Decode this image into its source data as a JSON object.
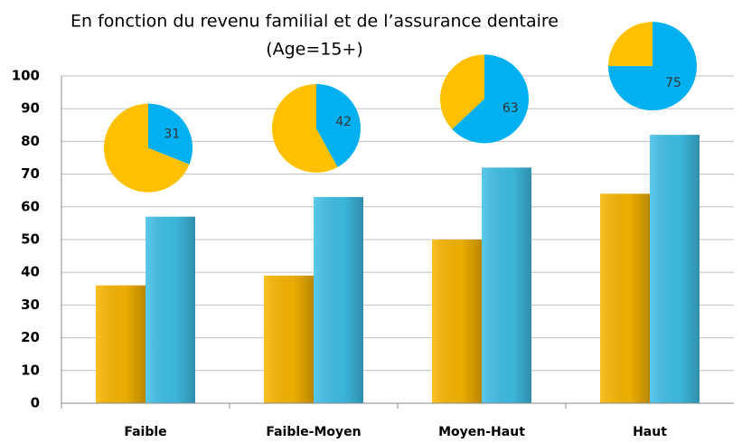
{
  "chart_data": [
    {
      "type": "bar",
      "title": "En fonction du revenu familial et de l’assurance dentaire",
      "subtitle": "(Age=15+)",
      "categories": [
        "Faible",
        "Faible-Moyen",
        "Moyen-Haut",
        "Haut"
      ],
      "series": [
        {
          "color": "#f7b500",
          "values": [
            36,
            39,
            50,
            64
          ]
        },
        {
          "color": "#3fbfe6",
          "values": [
            57,
            63,
            72,
            82
          ]
        }
      ],
      "ylim": [
        0,
        100
      ],
      "yticks": [
        0,
        10,
        20,
        30,
        40,
        50,
        60,
        70,
        80,
        90,
        100
      ],
      "grid": true
    },
    {
      "type": "pie",
      "values": [
        31,
        42,
        63,
        75
      ],
      "color": "#00b0f0",
      "rest_color": "#ffc000"
    }
  ]
}
